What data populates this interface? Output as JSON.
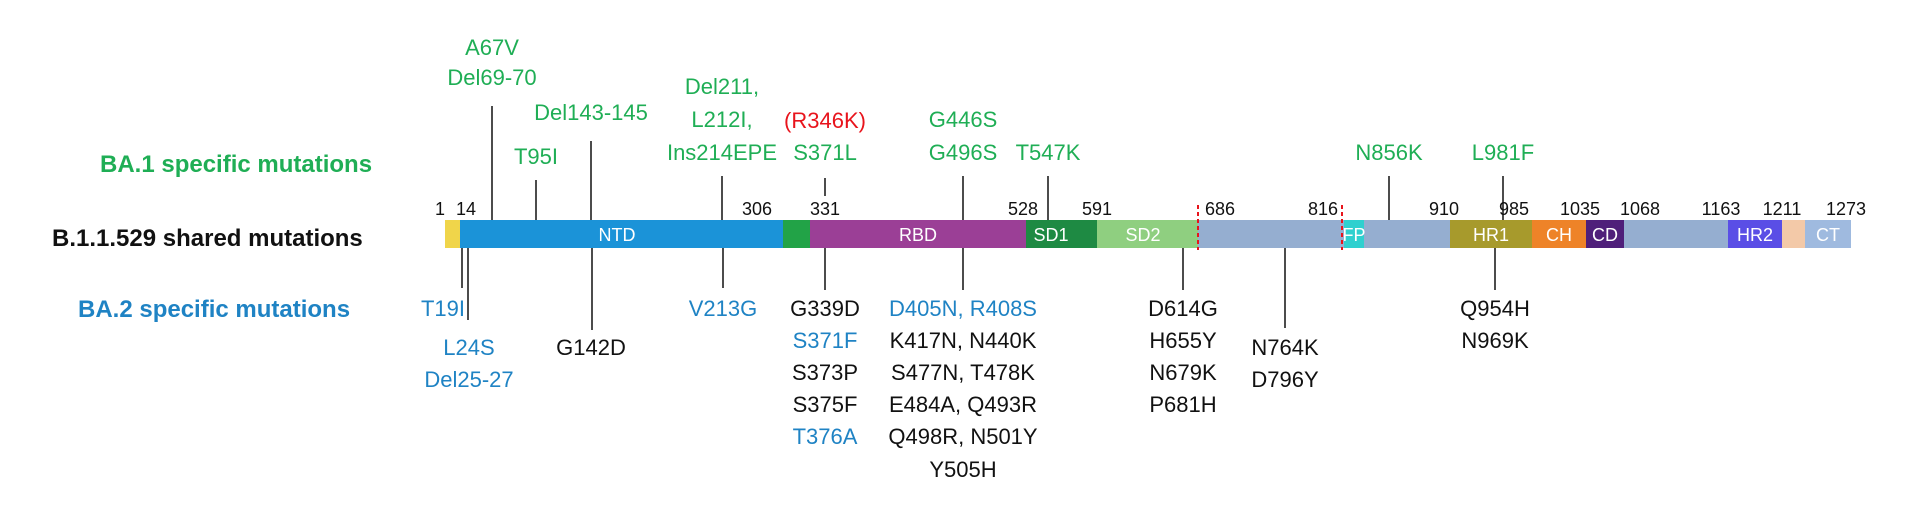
{
  "title_rows": {
    "ba1": "BA.1 specific mutations",
    "shared": "B.1.1.529 shared mutations",
    "ba2": "BA.2 specific mutations"
  },
  "colors": {
    "ba1_green": "#1fae55",
    "ba2_blue": "#1f83c4",
    "red": "#e8141c",
    "black": "#111111"
  },
  "positions": {
    "p1": "1",
    "p14": "14",
    "p306": "306",
    "p331": "331",
    "p528": "528",
    "p591": "591",
    "p686": "686",
    "p816": "816",
    "p910": "910",
    "p985": "985",
    "p1035": "1035",
    "p1068": "1068",
    "p1163": "1163",
    "p1211": "1211",
    "p1273": "1273"
  },
  "domains": {
    "ntd": "NTD",
    "rbd": "RBD",
    "sd1": "SD1",
    "sd2": "SD2",
    "fp": "FP",
    "hr1": "HR1",
    "ch": "CH",
    "cd": "CD",
    "hr2": "HR2",
    "ct": "CT"
  },
  "ba1_mutations": {
    "a67v": "A67V",
    "del69_70": "Del69-70",
    "t95i": "T95I",
    "del143_145": "Del143-145",
    "del211": "Del211,",
    "l212i": "L212I,",
    "ins214epe": "Ins214EPE",
    "r346k": "(R346K)",
    "s371l": "S371L",
    "g446s": "G446S",
    "g496s": "G496S",
    "t547k": "T547K",
    "n856k": "N856K",
    "l981f": "L981F"
  },
  "lower_mutations": {
    "t19i": "T19I",
    "l24s": "L24S",
    "del25_27": "Del25-27",
    "g142d": "G142D",
    "v213g": "V213G",
    "g339d": "G339D",
    "s371f": "S371F",
    "s373p": "S373P",
    "s375f": "S375F",
    "t376a": "T376A",
    "d405n_r408s": "D405N, R408S",
    "k417n_n440k": "K417N, N440K",
    "s477n_t478k": "S477N, T478K",
    "e484a_q493r": "E484A, Q493R",
    "q498r_n501y": "Q498R, N501Y",
    "y505h": "Y505H",
    "d614g": "D614G",
    "h655y": "H655Y",
    "n679k": "N679K",
    "p681h": "P681H",
    "n764k": "N764K",
    "d796y": "D796Y",
    "q954h": "Q954H",
    "n969k": "N969K"
  }
}
